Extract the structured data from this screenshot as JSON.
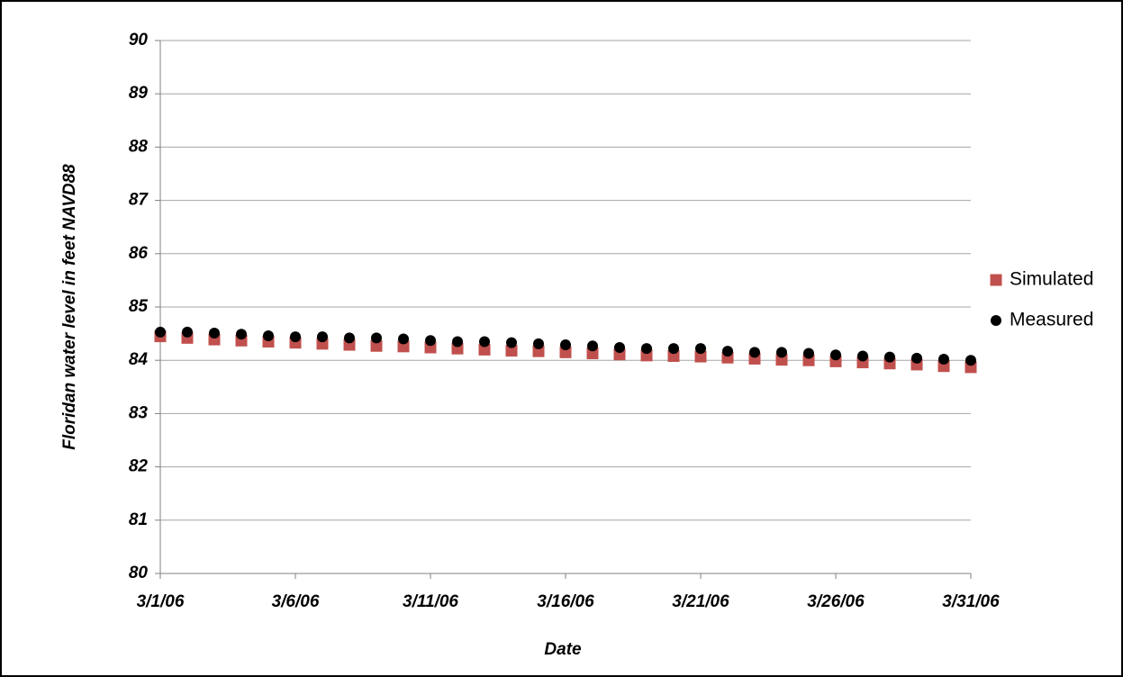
{
  "chart_data": {
    "type": "scatter",
    "x_label": "Date",
    "y_label": "Floridan water level in feet NAVD88",
    "x": [
      1,
      2,
      3,
      4,
      5,
      6,
      7,
      8,
      9,
      10,
      11,
      12,
      13,
      14,
      15,
      16,
      17,
      18,
      19,
      20,
      21,
      22,
      23,
      24,
      25,
      26,
      27,
      28,
      29,
      30,
      31
    ],
    "series": [
      {
        "name": "Simulated",
        "color": "#c0504d",
        "marker": "square",
        "values": [
          84.45,
          84.42,
          84.39,
          84.37,
          84.35,
          84.33,
          84.31,
          84.29,
          84.27,
          84.26,
          84.24,
          84.22,
          84.2,
          84.18,
          84.17,
          84.15,
          84.13,
          84.11,
          84.09,
          84.08,
          84.07,
          84.05,
          84.03,
          84.01,
          84.0,
          83.98,
          83.96,
          83.94,
          83.92,
          83.89,
          83.87
        ]
      },
      {
        "name": "Measured",
        "color": "#000000",
        "marker": "circle",
        "values": [
          84.53,
          84.53,
          84.51,
          84.49,
          84.46,
          84.44,
          84.44,
          84.42,
          84.42,
          84.4,
          84.37,
          84.35,
          84.35,
          84.33,
          84.31,
          84.29,
          84.27,
          84.24,
          84.22,
          84.22,
          84.22,
          84.17,
          84.15,
          84.15,
          84.13,
          84.1,
          84.08,
          84.06,
          84.04,
          84.02,
          84.0
        ]
      }
    ],
    "xlim": [
      1,
      31
    ],
    "xticks": [
      {
        "value": 1,
        "label": "3/1/06"
      },
      {
        "value": 6,
        "label": "3/6/06"
      },
      {
        "value": 11,
        "label": "3/11/06"
      },
      {
        "value": 16,
        "label": "3/16/06"
      },
      {
        "value": 21,
        "label": "3/21/06"
      },
      {
        "value": 26,
        "label": "3/26/06"
      },
      {
        "value": 31,
        "label": "3/31/06"
      }
    ],
    "ylim": [
      80,
      90
    ],
    "yticks": [
      80,
      81,
      82,
      83,
      84,
      85,
      86,
      87,
      88,
      89,
      90
    ],
    "grid": true,
    "legend": "right"
  }
}
